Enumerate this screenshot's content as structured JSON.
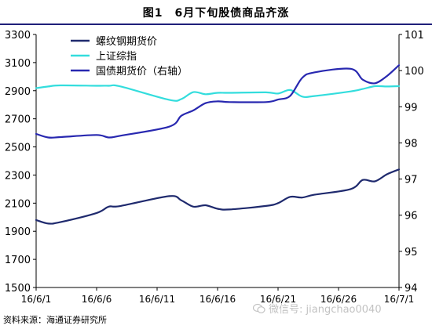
{
  "title": "图1　6月下旬股债商品齐涨",
  "source": "资料来源：海通证券研究所",
  "watermark": "微信号: jiangchao0040",
  "chart_data": {
    "type": "line",
    "x": [
      "16/6/1",
      "16/6/2",
      "16/6/3",
      "16/6/6",
      "16/6/7",
      "16/6/8",
      "16/6/12",
      "16/6/13",
      "16/6/14",
      "16/6/15",
      "16/6/16",
      "16/6/17",
      "16/6/20",
      "16/6/21",
      "16/6/22",
      "16/6/23",
      "16/6/24",
      "16/6/27",
      "16/6/28",
      "16/6/29",
      "16/6/30",
      "16/7/1"
    ],
    "x_ticks": [
      "16/6/1",
      "16/6/6",
      "16/6/11",
      "16/6/16",
      "16/6/21",
      "16/6/26",
      "16/7/1"
    ],
    "y_left": {
      "min": 1500,
      "max": 3300,
      "ticks": [
        1500,
        1700,
        1900,
        2100,
        2300,
        2500,
        2700,
        2900,
        3100,
        3300
      ]
    },
    "y_right": {
      "min": 94,
      "max": 101,
      "ticks": [
        94,
        95,
        96,
        97,
        98,
        99,
        100,
        101
      ]
    },
    "legend_position": "top-left",
    "series": [
      {
        "name": "螺纹钢期货价",
        "axis": "left",
        "color": "#1f2a6e",
        "points": [
          [
            "16/6/1",
            1980
          ],
          [
            "16/6/2",
            1955
          ],
          [
            "16/6/3",
            1965
          ],
          [
            "16/6/6",
            2030
          ],
          [
            "16/6/7",
            2075
          ],
          [
            "16/6/8",
            2080
          ],
          [
            "16/6/12",
            2150
          ],
          [
            "16/6/13",
            2120
          ],
          [
            "16/6/14",
            2075
          ],
          [
            "16/6/15",
            2085
          ],
          [
            "16/6/16",
            2060
          ],
          [
            "16/6/17",
            2055
          ],
          [
            "16/6/20",
            2080
          ],
          [
            "16/6/21",
            2100
          ],
          [
            "16/6/22",
            2145
          ],
          [
            "16/6/23",
            2140
          ],
          [
            "16/6/24",
            2160
          ],
          [
            "16/6/27",
            2200
          ],
          [
            "16/6/28",
            2265
          ],
          [
            "16/6/29",
            2255
          ],
          [
            "16/6/30",
            2305
          ],
          [
            "16/7/1",
            2340
          ]
        ]
      },
      {
        "name": "上证综指",
        "axis": "left",
        "color": "#33dddd",
        "points": [
          [
            "16/6/1",
            2918
          ],
          [
            "16/6/2",
            2930
          ],
          [
            "16/6/3",
            2938
          ],
          [
            "16/6/6",
            2935
          ],
          [
            "16/6/7",
            2935
          ],
          [
            "16/6/8",
            2930
          ],
          [
            "16/6/12",
            2835
          ],
          [
            "16/6/13",
            2840
          ],
          [
            "16/6/14",
            2890
          ],
          [
            "16/6/15",
            2875
          ],
          [
            "16/6/16",
            2885
          ],
          [
            "16/6/17",
            2885
          ],
          [
            "16/6/20",
            2888
          ],
          [
            "16/6/21",
            2880
          ],
          [
            "16/6/22",
            2905
          ],
          [
            "16/6/23",
            2858
          ],
          [
            "16/6/24",
            2862
          ],
          [
            "16/6/27",
            2895
          ],
          [
            "16/6/28",
            2912
          ],
          [
            "16/6/29",
            2932
          ],
          [
            "16/6/30",
            2930
          ],
          [
            "16/7/1",
            2932
          ]
        ]
      },
      {
        "name": "国债期货价（右轴）",
        "axis": "right",
        "color": "#2828b0",
        "points": [
          [
            "16/6/1",
            98.25
          ],
          [
            "16/6/2",
            98.15
          ],
          [
            "16/6/3",
            98.16
          ],
          [
            "16/6/6",
            98.22
          ],
          [
            "16/6/7",
            98.15
          ],
          [
            "16/6/8",
            98.2
          ],
          [
            "16/6/12",
            98.45
          ],
          [
            "16/6/13",
            98.75
          ],
          [
            "16/6/14",
            98.9
          ],
          [
            "16/6/15",
            99.1
          ],
          [
            "16/6/16",
            99.15
          ],
          [
            "16/6/17",
            99.13
          ],
          [
            "16/6/20",
            99.13
          ],
          [
            "16/6/21",
            99.2
          ],
          [
            "16/6/22",
            99.3
          ],
          [
            "16/6/23",
            99.8
          ],
          [
            "16/6/24",
            99.95
          ],
          [
            "16/6/27",
            100.05
          ],
          [
            "16/6/28",
            99.75
          ],
          [
            "16/6/29",
            99.65
          ],
          [
            "16/6/30",
            99.85
          ],
          [
            "16/7/1",
            100.15
          ]
        ]
      }
    ]
  }
}
